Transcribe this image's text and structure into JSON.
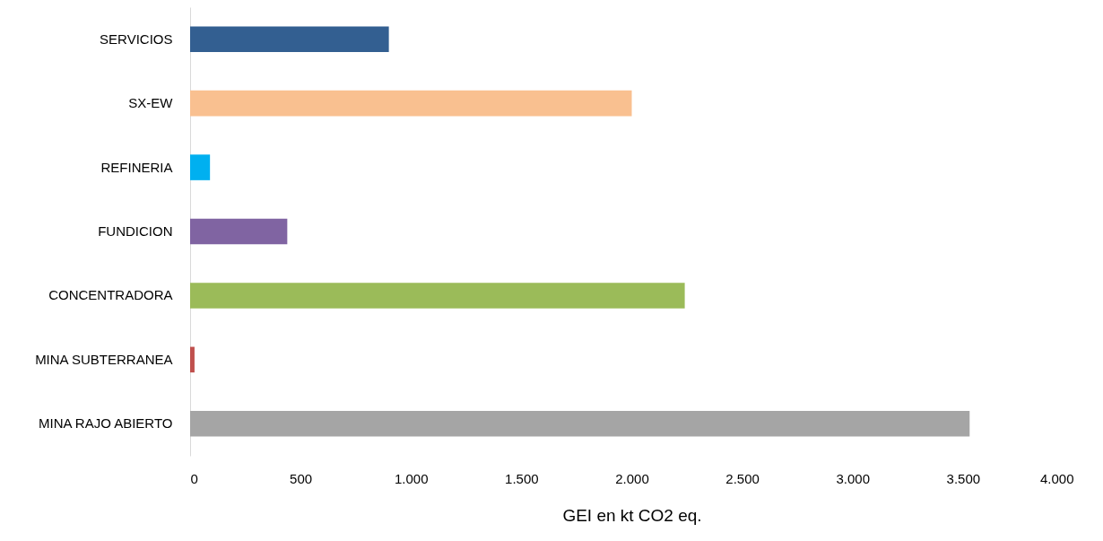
{
  "chart_data": {
    "type": "bar",
    "orientation": "horizontal",
    "xlabel": "GEI en kt CO2 eq.",
    "categories": [
      "SERVICIOS",
      "SX-EW",
      "REFINERIA",
      "FUNDICION",
      "CONCENTRADORA",
      "MINA SUBTERRANEA",
      "MINA RAJO ABIERTO"
    ],
    "values": [
      900,
      2000,
      90,
      440,
      2240,
      20,
      3530
    ],
    "colors": [
      "#335f91",
      "#f9c090",
      "#00b0f0",
      "#8064a2",
      "#9bbb59",
      "#c0504d",
      "#a5a5a5"
    ],
    "xlim": [
      0,
      4000
    ],
    "xticks": [
      0,
      500,
      {
        "value": 1000,
        "label": "1.000"
      },
      {
        "value": 1500,
        "label": "1.500"
      },
      {
        "value": 2000,
        "label": "2.000"
      },
      {
        "value": 2500,
        "label": "2.500"
      },
      {
        "value": 3000,
        "label": "3.000"
      },
      {
        "value": 3500,
        "label": "3.500"
      },
      {
        "value": 4000,
        "label": "4.000"
      }
    ],
    "grid": false
  }
}
